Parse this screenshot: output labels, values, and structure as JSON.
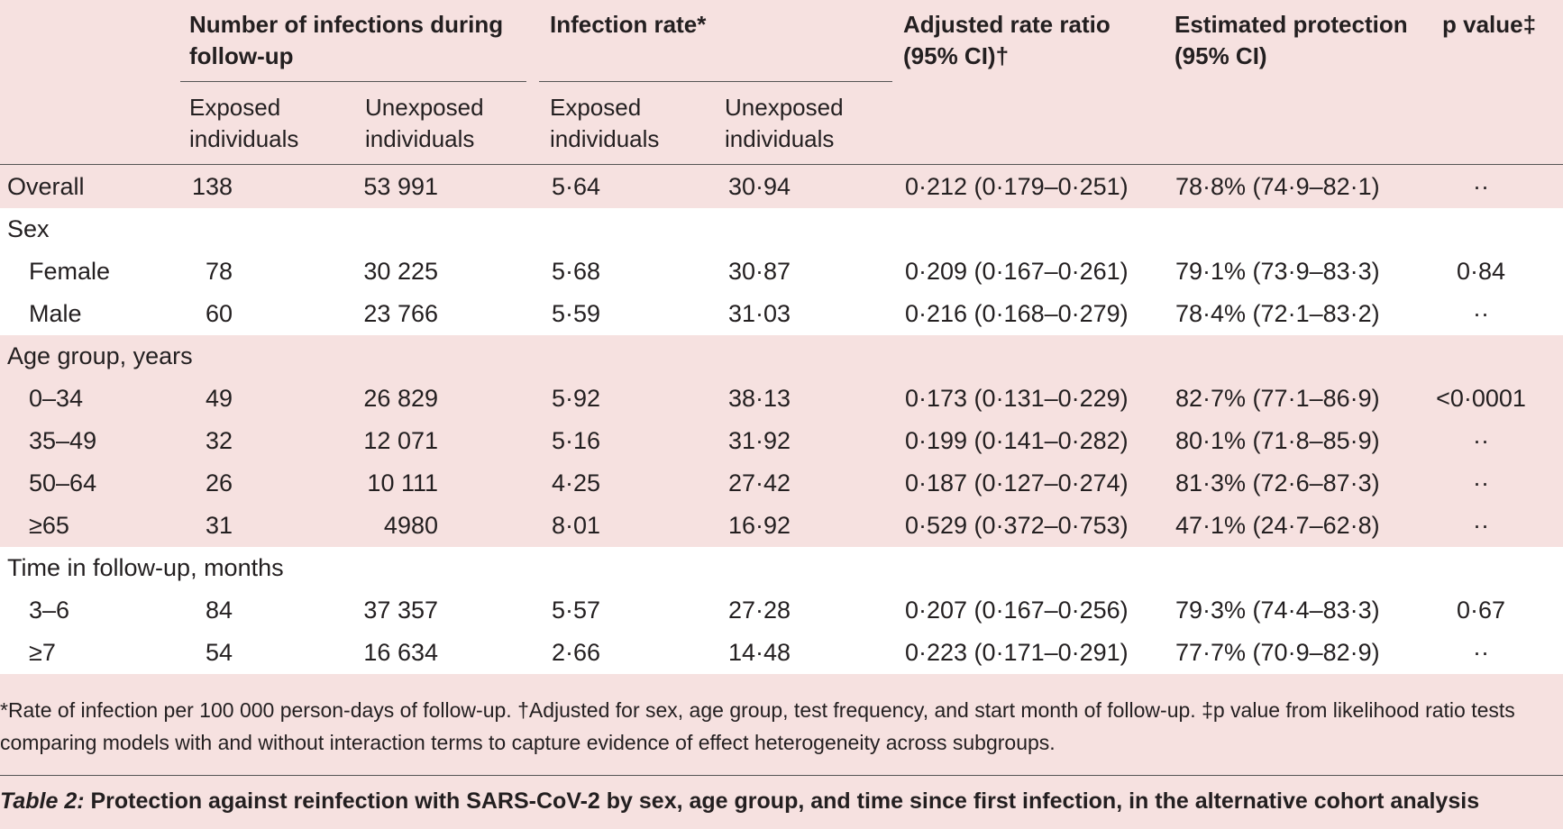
{
  "headers": {
    "infections": "Number of infections during follow-up",
    "rate": "Infection rate*",
    "ratio_line1": "Adjusted rate ratio",
    "ratio_line2": "(95% CI)†",
    "protection_line1": "Estimated protection",
    "protection_line2": "(95% CI)",
    "pvalue": "p value‡",
    "exposed_line1": "Exposed",
    "exposed_line2": "individuals",
    "unexposed_line1": "Unexposed",
    "unexposed_line2": "individuals"
  },
  "rows": [
    {
      "label": "Overall",
      "exposed": "138",
      "unexposed": "53 991",
      "rate_exposed": "5·64",
      "rate_unexposed": "30·94",
      "ratio": "0·212 (0·179–0·251)",
      "protection": "78·8% (74·9–82·1)",
      "p": "··"
    },
    {
      "label": "Sex",
      "exposed": "",
      "unexposed": "",
      "rate_exposed": "",
      "rate_unexposed": "",
      "ratio": "",
      "protection": "",
      "p": ""
    },
    {
      "label": "Female",
      "exposed": "78",
      "unexposed": "30 225",
      "rate_exposed": "5·68",
      "rate_unexposed": "30·87",
      "ratio": "0·209 (0·167–0·261)",
      "protection": "79·1% (73·9–83·3)",
      "p": "0·84"
    },
    {
      "label": "Male",
      "exposed": "60",
      "unexposed": "23 766",
      "rate_exposed": "5·59",
      "rate_unexposed": "31·03",
      "ratio": "0·216 (0·168–0·279)",
      "protection": "78·4% (72·1–83·2)",
      "p": "··"
    },
    {
      "label": "Age group, years",
      "exposed": "",
      "unexposed": "",
      "rate_exposed": "",
      "rate_unexposed": "",
      "ratio": "",
      "protection": "",
      "p": ""
    },
    {
      "label": "0–34",
      "exposed": "49",
      "unexposed": "26 829",
      "rate_exposed": "5·92",
      "rate_unexposed": "38·13",
      "ratio": "0·173 (0·131–0·229)",
      "protection": "82·7% (77·1–86·9)",
      "p": "<0·0001"
    },
    {
      "label": "35–49",
      "exposed": "32",
      "unexposed": "12 071",
      "rate_exposed": "5·16",
      "rate_unexposed": "31·92",
      "ratio": "0·199 (0·141–0·282)",
      "protection": "80·1% (71·8–85·9)",
      "p": "··"
    },
    {
      "label": "50–64",
      "exposed": "26",
      "unexposed": "10 111",
      "rate_exposed": "4·25",
      "rate_unexposed": "27·42",
      "ratio": "0·187 (0·127–0·274)",
      "protection": "81·3% (72·6–87·3)",
      "p": "··"
    },
    {
      "label": "≥65",
      "exposed": "31",
      "unexposed": "4980",
      "rate_exposed": "8·01",
      "rate_unexposed": "16·92",
      "ratio": "0·529 (0·372–0·753)",
      "protection": "47·1% (24·7–62·8)",
      "p": "··"
    },
    {
      "label": "Time in follow-up, months",
      "exposed": "",
      "unexposed": "",
      "rate_exposed": "",
      "rate_unexposed": "",
      "ratio": "",
      "protection": "",
      "p": ""
    },
    {
      "label": "3–6",
      "exposed": "84",
      "unexposed": "37 357",
      "rate_exposed": "5·57",
      "rate_unexposed": "27·28",
      "ratio": "0·207 (0·167–0·256)",
      "protection": "79·3% (74·4–83·3)",
      "p": "0·67"
    },
    {
      "label": "≥7",
      "exposed": "54",
      "unexposed": "16 634",
      "rate_exposed": "2·66",
      "rate_unexposed": "14·48",
      "ratio": "0·223 (0·171–0·291)",
      "protection": "77·7% (70·9–82·9)",
      "p": "··"
    }
  ],
  "footnote_line1": "*Rate of infection per 100 000 person-days of follow-up. †Adjusted for sex, age group, test frequency, and start month of follow-up. ‡p value from likelihood ratio tests",
  "footnote_line2": "comparing models with and without interaction terms to capture evidence of effect heterogeneity across subgroups.",
  "caption_label": "Table 2:",
  "caption_text": " Protection against reinfection with SARS-CoV-2 by sex, age group, and time since first infection, in the alternative cohort analysis",
  "colors": {
    "pink": "#f6e1e0",
    "white": "#ffffff",
    "text": "#231f20"
  }
}
